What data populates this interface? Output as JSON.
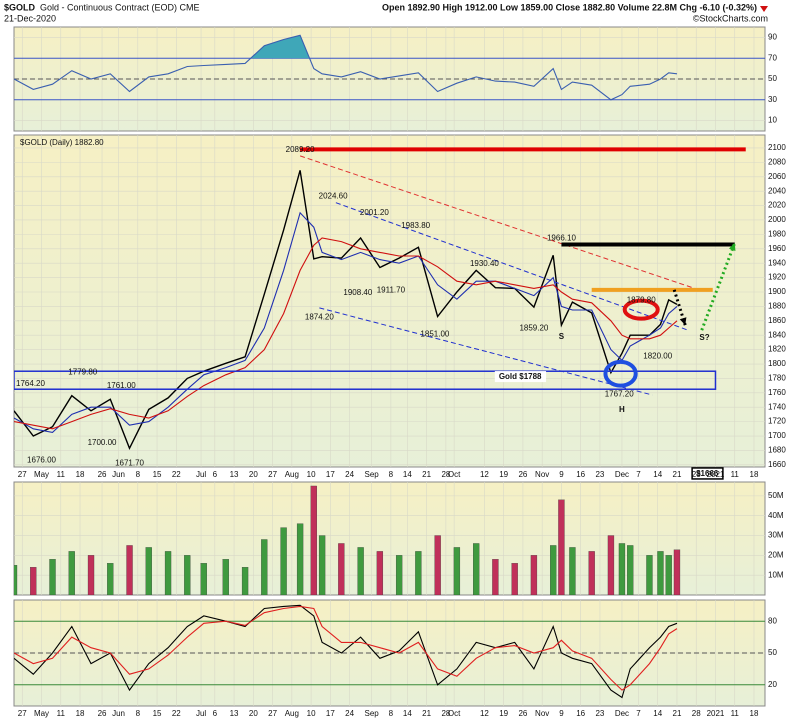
{
  "header": {
    "symbol": "$GOLD",
    "name": "Gold - Continuous Contract (EOD) CME",
    "date": "21-Dec-2020",
    "quote": "Open 1892.90 High 1912.00 Low 1859.00 Close 1882.80 Volume 22.8M Chg -6.10 (-0.32%)",
    "credit": "©StockCharts.com"
  },
  "chart_data": {
    "x": [
      "2020-04-24",
      "2020-05-01",
      "2020-05-08",
      "2020-05-15",
      "2020-05-22",
      "2020-05-29",
      "2020-06-05",
      "2020-06-12",
      "2020-06-19",
      "2020-06-26",
      "2020-07-02",
      "2020-07-10",
      "2020-07-17",
      "2020-07-24",
      "2020-07-31",
      "2020-08-06",
      "2020-08-11",
      "2020-08-14",
      "2020-08-21",
      "2020-08-28",
      "2020-09-04",
      "2020-09-11",
      "2020-09-18",
      "2020-09-25",
      "2020-10-02",
      "2020-10-09",
      "2020-10-16",
      "2020-10-23",
      "2020-10-30",
      "2020-11-06",
      "2020-11-09",
      "2020-11-13",
      "2020-11-20",
      "2020-11-27",
      "2020-12-01",
      "2020-12-04",
      "2020-12-11",
      "2020-12-15",
      "2020-12-18",
      "2020-12-21"
    ],
    "xlim": [
      "2020-04-24",
      "2021-01-22"
    ],
    "xticks": [
      {
        "value": "2020-04-27",
        "label": "27"
      },
      {
        "value": "2020-05-04",
        "label": "May"
      },
      {
        "value": "2020-05-11",
        "label": "11"
      },
      {
        "value": "2020-05-18",
        "label": "18"
      },
      {
        "value": "2020-05-26",
        "label": "26"
      },
      {
        "value": "2020-06-01",
        "label": "Jun"
      },
      {
        "value": "2020-06-08",
        "label": "8"
      },
      {
        "value": "2020-06-15",
        "label": "15"
      },
      {
        "value": "2020-06-22",
        "label": "22"
      },
      {
        "value": "2020-07-01",
        "label": "Jul"
      },
      {
        "value": "2020-07-06",
        "label": "6"
      },
      {
        "value": "2020-07-13",
        "label": "13"
      },
      {
        "value": "2020-07-20",
        "label": "20"
      },
      {
        "value": "2020-07-27",
        "label": "27"
      },
      {
        "value": "2020-08-03",
        "label": "Aug"
      },
      {
        "value": "2020-08-10",
        "label": "10"
      },
      {
        "value": "2020-08-17",
        "label": "17"
      },
      {
        "value": "2020-08-24",
        "label": "24"
      },
      {
        "value": "2020-09-01",
        "label": "Sep"
      },
      {
        "value": "2020-09-08",
        "label": "8"
      },
      {
        "value": "2020-09-14",
        "label": "14"
      },
      {
        "value": "2020-09-21",
        "label": "21"
      },
      {
        "value": "2020-09-28",
        "label": "28"
      },
      {
        "value": "2020-10-01",
        "label": "Oct"
      },
      {
        "value": "2020-10-12",
        "label": "12"
      },
      {
        "value": "2020-10-19",
        "label": "19"
      },
      {
        "value": "2020-10-26",
        "label": "26"
      },
      {
        "value": "2020-11-02",
        "label": "Nov"
      },
      {
        "value": "2020-11-09",
        "label": "9"
      },
      {
        "value": "2020-11-16",
        "label": "16"
      },
      {
        "value": "2020-11-23",
        "label": "23"
      },
      {
        "value": "2020-12-01",
        "label": "Dec"
      },
      {
        "value": "2020-12-07",
        "label": "7"
      },
      {
        "value": "2020-12-14",
        "label": "14"
      },
      {
        "value": "2020-12-21",
        "label": "21"
      },
      {
        "value": "2020-12-28",
        "label": "28"
      },
      {
        "value": "2021-01-04",
        "label": "2021"
      },
      {
        "value": "2021-01-11",
        "label": "11"
      },
      {
        "value": "2021-01-18",
        "label": "18"
      }
    ],
    "panels": [
      {
        "type": "line",
        "ylim": [
          0,
          100
        ],
        "yticks": [
          90,
          70,
          50,
          30,
          10
        ],
        "shade_above": 70,
        "shade_color": "#3fa7b8",
        "reference_lines": [
          {
            "value": 70,
            "style": "solid",
            "color": "#3a55c8"
          },
          {
            "value": 50,
            "style": "dashed",
            "color": "#555"
          },
          {
            "value": 30,
            "style": "solid",
            "color": "#3a55c8"
          }
        ],
        "series": [
          {
            "color": "#3a5fb0",
            "values": [
              50,
              40,
              45,
              58,
              50,
              55,
              38,
              52,
              55,
              62,
              63,
              64,
              65,
              82,
              88,
              92,
              60,
              55,
              52,
              57,
              50,
              53,
              56,
              38,
              46,
              52,
              48,
              47,
              43,
              60,
              40,
              47,
              44,
              30,
              35,
              43,
              45,
              50,
              56,
              55
            ]
          }
        ]
      },
      {
        "type": "line",
        "ylim": [
          1657,
          2118
        ],
        "yticks": [
          1660,
          1680,
          1700,
          1720,
          1740,
          1760,
          1780,
          1800,
          1820,
          1840,
          1860,
          1880,
          1900,
          1920,
          1940,
          1960,
          1980,
          2000,
          2020,
          2040,
          2060,
          2080,
          2100
        ],
        "series": [
          {
            "name": "$GOLD (Daily) 1882.80",
            "color": "#000000",
            "values": [
              1735,
              1700,
              1713,
              1756,
              1735,
              1751,
              1683,
              1737,
              1753,
              1780,
              1790,
              1801,
              1810,
              1897,
              1986,
              2069,
              1946,
              1949,
              1947,
              1975,
              1934,
              1947,
              1962,
              1866,
              1900,
              1930,
              1906,
              1905,
              1879,
              1951,
              1854,
              1886,
              1871,
              1788,
              1815,
              1840,
              1840,
              1855,
              1889,
              1882.8
            ]
          },
          {
            "color": "#1f2fb0",
            "values": [
              1725,
              1710,
              1705,
              1730,
              1740,
              1740,
              1715,
              1720,
              1740,
              1765,
              1785,
              1795,
              1805,
              1850,
              1930,
              2010,
              1990,
              1955,
              1945,
              1955,
              1945,
              1940,
              1950,
              1910,
              1890,
              1915,
              1915,
              1905,
              1895,
              1920,
              1880,
              1875,
              1875,
              1820,
              1805,
              1825,
              1840,
              1850,
              1870,
              1880
            ]
          },
          {
            "color": "#d01010",
            "values": [
              1720,
              1715,
              1710,
              1720,
              1730,
              1738,
              1730,
              1725,
              1735,
              1755,
              1770,
              1785,
              1795,
              1820,
              1870,
              1930,
              1965,
              1975,
              1970,
              1960,
              1955,
              1950,
              1950,
              1935,
              1915,
              1910,
              1915,
              1910,
              1905,
              1910,
              1900,
              1890,
              1885,
              1860,
              1840,
              1835,
              1835,
              1840,
              1850,
              1860
            ]
          }
        ],
        "price_labels": [
          {
            "label": "2089.20",
            "x": "2020-08-06",
            "y": 2089.2
          },
          {
            "label": "2024.60",
            "x": "2020-08-18",
            "y": 2024.6
          },
          {
            "label": "2001.20",
            "x": "2020-09-02",
            "y": 2001.2
          },
          {
            "label": "1983.80",
            "x": "2020-09-17",
            "y": 1983.8
          },
          {
            "label": "1966.10",
            "x": "2020-11-09",
            "y": 1966.1
          },
          {
            "label": "1930.40",
            "x": "2020-10-12",
            "y": 1930.4
          },
          {
            "label": "1908.40",
            "x": "2020-08-27",
            "y": 1908.4
          },
          {
            "label": "1911.70",
            "x": "2020-09-08",
            "y": 1911.7
          },
          {
            "label": "1874.20",
            "x": "2020-08-13",
            "y": 1874.2
          },
          {
            "label": "1851.00",
            "x": "2020-09-24",
            "y": 1851
          },
          {
            "label": "1859.20",
            "x": "2020-10-30",
            "y": 1859.2
          },
          {
            "label": "1879.80",
            "x": "2020-12-08",
            "y": 1879.8
          },
          {
            "label": "1820.00",
            "x": "2020-12-14",
            "y": 1820
          },
          {
            "label": "1767.20",
            "x": "2020-11-30",
            "y": 1767.2
          },
          {
            "label": "1779.80",
            "x": "2020-05-19",
            "y": 1779.8
          },
          {
            "label": "1764.20",
            "x": "2020-04-30",
            "y": 1764.2
          },
          {
            "label": "1761.00",
            "x": "2020-06-02",
            "y": 1761
          },
          {
            "label": "1700.00",
            "x": "2020-05-26",
            "y": 1700
          },
          {
            "label": "1676.00",
            "x": "2020-05-04",
            "y": 1676
          },
          {
            "label": "1671.70",
            "x": "2020-06-05",
            "y": 1671.7
          }
        ],
        "drawings": [
          {
            "shape": "line",
            "color": "#e00000",
            "style": "thick",
            "x": [
              "2020-08-06",
              "2021-01-15"
            ],
            "y": [
              2098,
              2098
            ]
          },
          {
            "shape": "line",
            "color": "#e03030",
            "style": "dashed",
            "x": [
              "2020-08-06",
              "2020-12-29"
            ],
            "y": [
              2089,
              1903
            ]
          },
          {
            "shape": "line",
            "color": "#1f2fd0",
            "style": "dashed",
            "x": [
              "2020-08-19",
              "2020-12-25"
            ],
            "y": [
              2024,
              1847
            ]
          },
          {
            "shape": "line",
            "color": "#1f2fd0",
            "style": "dashed",
            "x": [
              "2020-08-13",
              "2020-12-12"
            ],
            "y": [
              1878,
              1757
            ]
          },
          {
            "shape": "line",
            "color": "#000000",
            "style": "thick",
            "x": [
              "2020-11-09",
              "2021-01-11"
            ],
            "y": [
              1966,
              1966
            ]
          },
          {
            "shape": "line",
            "color": "#f0a020",
            "style": "thick",
            "x": [
              "2020-11-20",
              "2021-01-03"
            ],
            "y": [
              1903,
              1903
            ]
          },
          {
            "shape": "rect",
            "color": "#1f2fd0",
            "style": "solid",
            "x": [
              "2020-04-24",
              "2021-01-04"
            ],
            "y": [
              1765,
              1790
            ]
          },
          {
            "shape": "ellipse",
            "color": "#1f4fe0",
            "style": "thick",
            "x": [
              "2020-11-25",
              "2020-12-06"
            ],
            "y": [
              1770,
              1803
            ]
          },
          {
            "shape": "ellipse",
            "color": "#e01010",
            "style": "thick",
            "x": [
              "2020-12-02",
              "2020-12-14"
            ],
            "y": [
              1863,
              1888
            ]
          },
          {
            "shape": "arrow",
            "color": "#000000",
            "style": "dotted",
            "x": [
              "2020-12-20",
              "2020-12-24"
            ],
            "y": [
              1903,
              1854
            ]
          },
          {
            "shape": "arrow",
            "color": "#22aa22",
            "style": "dotted",
            "x": [
              "2020-12-30",
              "2021-01-11"
            ],
            "y": [
              1847,
              1968
            ]
          }
        ],
        "annotations": [
          {
            "text": "Gold $1788",
            "x": "2020-10-25",
            "y": 1782,
            "color": "#1f3fbf",
            "background": "#ffffff"
          },
          {
            "text": "S",
            "x": "2020-11-09",
            "y": 1838,
            "color": "#1f3fbf"
          },
          {
            "text": "S?",
            "x": "2020-12-31",
            "y": 1836,
            "color": "#1f3fbf"
          },
          {
            "text": "H",
            "x": "2020-12-01",
            "y": 1736,
            "color": "#1f3fbf"
          },
          {
            "text": "$1666",
            "x": "2021-01-01",
            "y": 1647.5,
            "color": "#000000",
            "background": "#ffffff",
            "border": "#000000"
          }
        ]
      },
      {
        "type": "bar",
        "ylim": [
          0,
          57
        ],
        "yticks": [
          {
            "value": 50,
            "label": "50M"
          },
          {
            "value": 40,
            "label": "40M"
          },
          {
            "value": 30,
            "label": "30M"
          },
          {
            "value": 20,
            "label": "20M"
          },
          {
            "value": 10,
            "label": "10M"
          }
        ],
        "up_color": "#3f9a3f",
        "down_color": "#c0305a",
        "values": [
          15,
          14,
          18,
          22,
          20,
          16,
          25,
          24,
          22,
          20,
          16,
          18,
          14,
          28,
          34,
          36,
          55,
          30,
          26,
          24,
          22,
          20,
          22,
          30,
          24,
          26,
          18,
          16,
          20,
          25,
          48,
          24,
          22,
          30,
          26,
          25,
          20,
          22,
          20,
          22.8
        ]
      },
      {
        "type": "line",
        "ylim": [
          0,
          100
        ],
        "yticks": [
          80,
          50,
          20
        ],
        "reference_lines": [
          {
            "value": 80,
            "style": "solid",
            "color": "#3a8a3a"
          },
          {
            "value": 50,
            "style": "dashed",
            "color": "#555"
          },
          {
            "value": 20,
            "style": "solid",
            "color": "#3a8a3a"
          }
        ],
        "series": [
          {
            "color": "#000000",
            "values": [
              45,
              30,
              50,
              75,
              40,
              50,
              15,
              40,
              55,
              75,
              85,
              80,
              75,
              92,
              94,
              95,
              85,
              60,
              50,
              65,
              45,
              52,
              70,
              20,
              35,
              60,
              55,
              60,
              35,
              75,
              50,
              45,
              40,
              15,
              8,
              35,
              55,
              65,
              75,
              78
            ]
          },
          {
            "color": "#e02020",
            "values": [
              50,
              40,
              45,
              65,
              55,
              50,
              30,
              35,
              48,
              65,
              78,
              80,
              76,
              88,
              92,
              94,
              92,
              75,
              60,
              60,
              55,
              50,
              60,
              35,
              28,
              45,
              55,
              57,
              50,
              55,
              62,
              52,
              45,
              25,
              15,
              20,
              40,
              55,
              68,
              73
            ]
          }
        ]
      }
    ]
  }
}
